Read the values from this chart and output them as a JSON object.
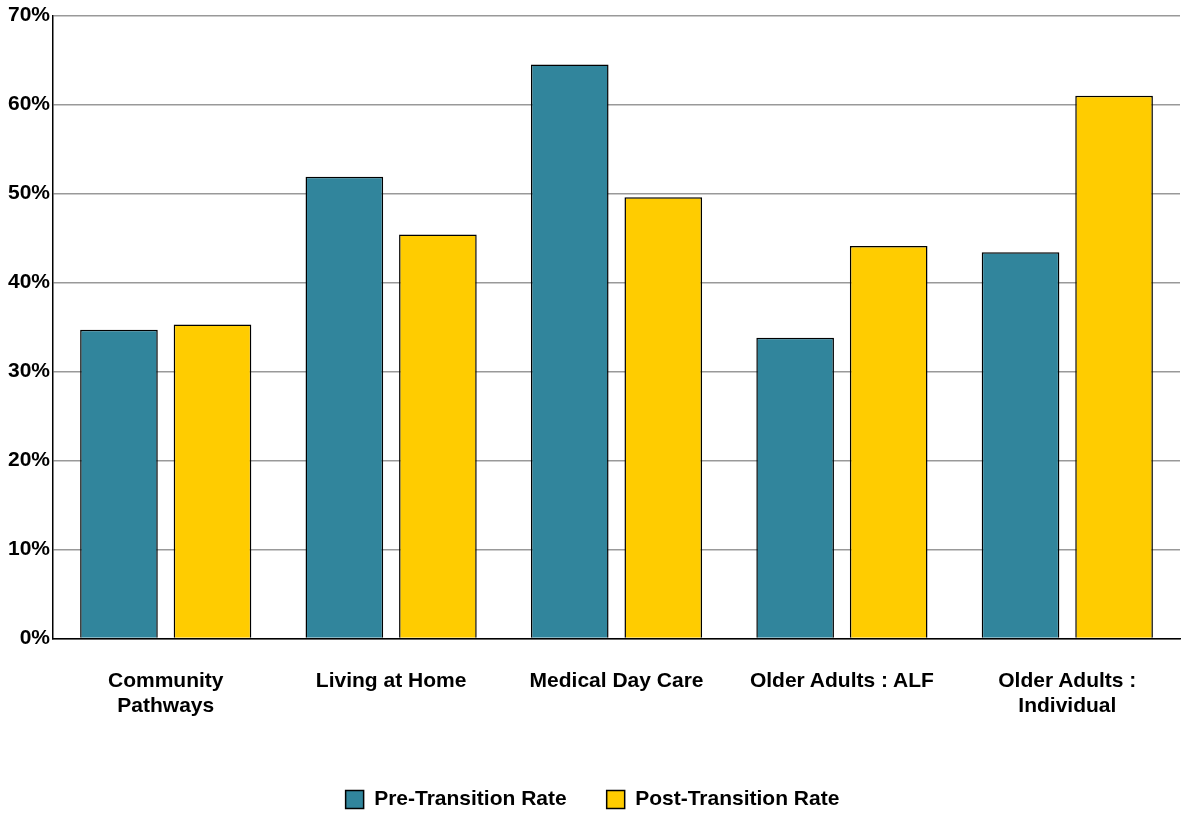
{
  "chart_data": {
    "type": "bar",
    "categories": [
      "Community\nPathways",
      "Living at Home",
      "Medical Day Care",
      "Older Adults : ALF",
      "Older Adults :\nIndividual"
    ],
    "series": [
      {
        "name": "Pre-Transition Rate",
        "color": "#31859c",
        "values": [
          34.7,
          51.9,
          64.5,
          33.8,
          43.4
        ]
      },
      {
        "name": "Post-Transition Rate",
        "color": "#ffcc00",
        "values": [
          35.3,
          45.4,
          49.6,
          44.1,
          61.0
        ]
      }
    ],
    "ylim": [
      0,
      70
    ],
    "yticks": [
      {
        "value": 0,
        "label": "0%"
      },
      {
        "value": 10,
        "label": "10%"
      },
      {
        "value": 20,
        "label": "20%"
      },
      {
        "value": 30,
        "label": "30%"
      },
      {
        "value": 40,
        "label": "40%"
      },
      {
        "value": 50,
        "label": "50%"
      },
      {
        "value": 60,
        "label": "60%"
      },
      {
        "value": 70,
        "label": "70%"
      }
    ],
    "grid": "y",
    "legend": "bottom"
  }
}
